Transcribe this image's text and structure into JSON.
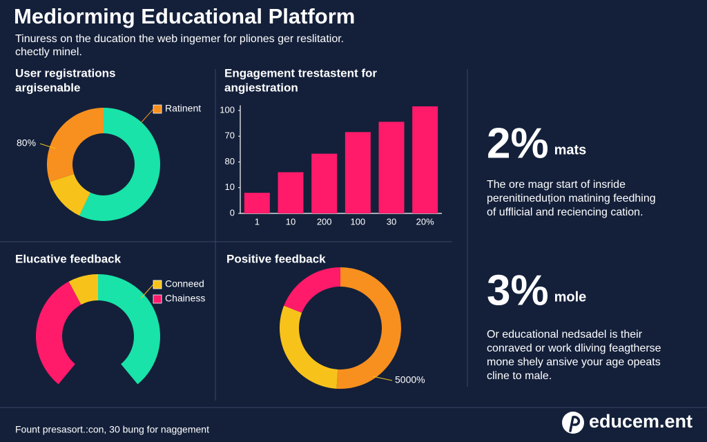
{
  "header": {
    "title": "Mediorming Educational Platform",
    "subtitle": [
      "Tinuress on the ducation the web ingemer for pliones ger reslitatior.",
      "chectly minel."
    ]
  },
  "chart_data": [
    {
      "type": "donut",
      "title": [
        "User registrations",
        "argisenable"
      ],
      "categories": [
        null,
        null,
        "Ratinent"
      ],
      "values": [
        57,
        13,
        30
      ],
      "colors": [
        "#19e3a8",
        "#f7c31b",
        "#f7901e"
      ],
      "annotations": [
        "80%"
      ]
    },
    {
      "type": "bar",
      "title": [
        "Engagement trestastent for",
        "angiestration"
      ],
      "categories": [
        "1",
        "10",
        "200",
        "100",
        "30",
        "20%"
      ],
      "values": [
        20,
        40,
        58,
        79,
        89,
        104
      ],
      "color": "#ff1a6a",
      "ylim": [
        0,
        105
      ],
      "yticks": [
        0,
        {
          "value": 25,
          "label": "10"
        },
        {
          "value": 50,
          "label": "80"
        },
        {
          "value": 75,
          "label": "70"
        },
        100
      ]
    },
    {
      "type": "gauge",
      "title": [
        "Elucative feedback"
      ],
      "categories": [
        "Chainess",
        "Conneed",
        null
      ],
      "values": [
        40,
        10,
        50
      ],
      "colors": [
        "#ff1a6a",
        "#f7c31b",
        "#19e3a8"
      ]
    },
    {
      "type": "donut",
      "title": [
        "Positive feedback"
      ],
      "categories": [
        null,
        null,
        null
      ],
      "values": [
        51,
        30,
        19
      ],
      "colors": [
        "#f7901e",
        "#f7c31b",
        "#ff1a6a"
      ],
      "annotations": [
        "5000%"
      ]
    }
  ],
  "stats": [
    {
      "value": "2%",
      "unit": "mats",
      "color": "#f7c31b",
      "text": [
        "The ore magr start of insride",
        "perenitineduțion matining feedhing",
        "of ufflicial and reciencing cation."
      ]
    },
    {
      "value": "3%",
      "unit": "mole",
      "color": "#ff1a6a",
      "text": [
        "Or educational nedsadel is their",
        "conraved or work dliving feagtherse",
        "mone shely ansive your age opeats",
        "cline to male."
      ]
    }
  ],
  "footer": {
    "text": "Fount presasort.:con, 30 bung for naggement",
    "logo": "educem.ent"
  }
}
